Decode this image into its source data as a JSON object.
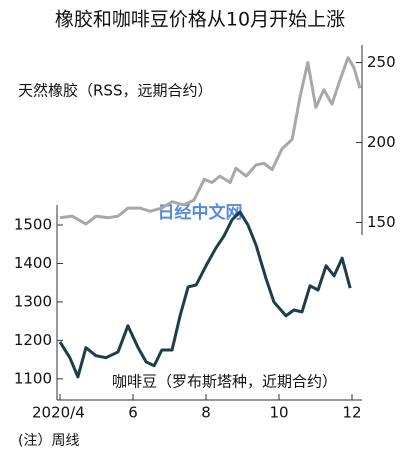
{
  "chart_data": {
    "type": "line",
    "title": "橡胶和咖啡豆价格从10月开始上涨",
    "note": "(注）周线",
    "watermark": "日经中文网",
    "xlim": [
      4,
      12.2
    ],
    "xticks": [
      {
        "value": 4,
        "label": "2020/4"
      },
      6,
      8,
      10,
      12
    ],
    "ylim": [
      1045,
      1968
    ],
    "yticks": [
      1100,
      1200,
      1300,
      1400,
      1500
    ],
    "y2lim": [
      39,
      261
    ],
    "y2ticks": [
      150,
      200,
      250
    ],
    "series": [
      {
        "name": "天然橡胶（RSS，远期合约）",
        "color": "#a8a8a8",
        "axis": "y2",
        "x": [
          4.0,
          4.33,
          4.71,
          4.99,
          5.32,
          5.59,
          5.86,
          6.19,
          6.47,
          6.79,
          7.07,
          7.4,
          7.67,
          7.95,
          8.16,
          8.38,
          8.66,
          8.82,
          9.1,
          9.37,
          9.59,
          9.81,
          10.08,
          10.36,
          10.58,
          10.79,
          11.01,
          11.23,
          11.45,
          11.67,
          11.89,
          12.05,
          12.22
        ],
        "values": [
          153,
          154,
          149,
          154,
          153,
          154,
          159,
          159,
          157,
          159,
          163,
          161,
          164,
          177,
          175,
          179,
          175,
          184,
          179,
          186,
          187,
          183,
          196,
          202,
          229,
          250,
          222,
          233,
          224,
          239,
          253,
          247,
          234
        ]
      },
      {
        "name": "咖啡豆（罗布斯塔种，近期合约）",
        "color": "#1e3d4a",
        "x": [
          4.0,
          4.27,
          4.49,
          4.71,
          4.99,
          5.26,
          5.59,
          5.86,
          6.14,
          6.36,
          6.58,
          6.79,
          7.07,
          7.29,
          7.51,
          7.73,
          8.0,
          8.27,
          8.49,
          8.71,
          8.93,
          9.15,
          9.37,
          9.64,
          9.86,
          10.19,
          10.41,
          10.63,
          10.85,
          11.07,
          11.29,
          11.51,
          11.73,
          11.95
        ],
        "values": [
          1196,
          1155,
          1105,
          1181,
          1160,
          1155,
          1170,
          1238,
          1181,
          1144,
          1134,
          1175,
          1175,
          1264,
          1339,
          1344,
          1394,
          1440,
          1471,
          1513,
          1534,
          1500,
          1448,
          1362,
          1300,
          1264,
          1279,
          1274,
          1342,
          1331,
          1394,
          1368,
          1414,
          1336
        ]
      }
    ]
  }
}
